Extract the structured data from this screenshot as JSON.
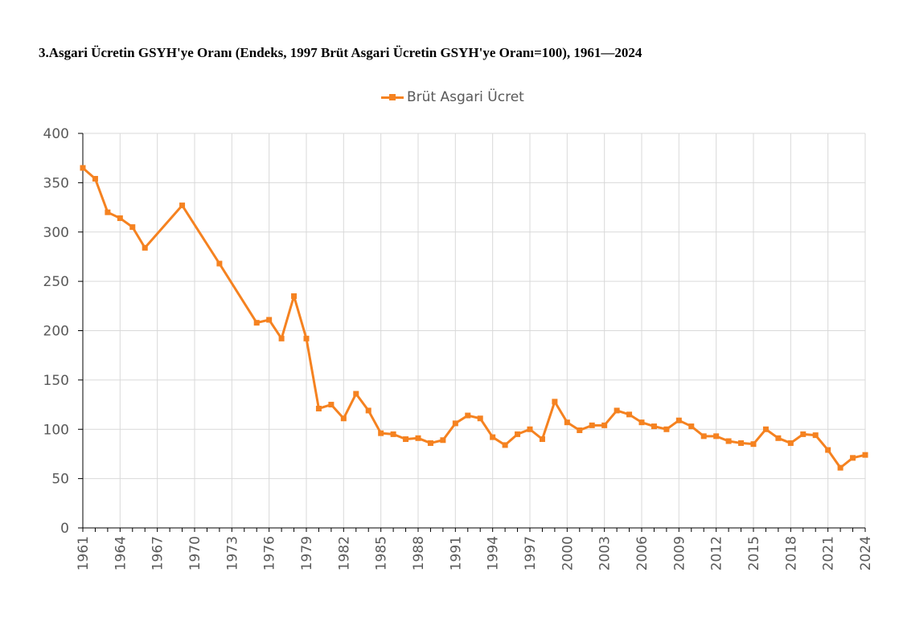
{
  "title": "3.Asgari Ücretin GSYH'ye Oranı (Endeks, 1997 Brüt Asgari Ücretin GSYH'ye Oranı=100), 1961—2024",
  "colors": {
    "series": "#f58220",
    "grid": "#d9d9d9",
    "axis": "#000000",
    "text": "#595959"
  },
  "chart_data": {
    "type": "line",
    "title": "3.Asgari Ücretin GSYH'ye Oranı (Endeks, 1997 Brüt Asgari Ücretin GSYH'ye Oranı=100), 1961—2024",
    "xlabel": "",
    "ylabel": "",
    "xlim": [
      1961,
      2024
    ],
    "ylim": [
      0,
      400
    ],
    "yticks": [
      0,
      50,
      100,
      150,
      200,
      250,
      300,
      350,
      400
    ],
    "xticks": [
      1961,
      1964,
      1967,
      1970,
      1973,
      1976,
      1979,
      1982,
      1985,
      1988,
      1991,
      1994,
      1997,
      2000,
      2003,
      2006,
      2009,
      2012,
      2015,
      2018,
      2021,
      2024
    ],
    "grid": true,
    "legend_position": "top-center",
    "series": [
      {
        "name": "Brüt Asgari Ücret",
        "marker": "square",
        "points": [
          [
            1961,
            365
          ],
          [
            1962,
            354
          ],
          [
            1963,
            320
          ],
          [
            1964,
            314
          ],
          [
            1965,
            305
          ],
          [
            1966,
            284
          ],
          [
            1969,
            327
          ],
          [
            1972,
            268
          ],
          [
            1975,
            208
          ],
          [
            1976,
            211
          ],
          [
            1977,
            192
          ],
          [
            1978,
            235
          ],
          [
            1979,
            192
          ],
          [
            1980,
            121
          ],
          [
            1981,
            125
          ],
          [
            1982,
            111
          ],
          [
            1983,
            136
          ],
          [
            1984,
            119
          ],
          [
            1985,
            96
          ],
          [
            1986,
            95
          ],
          [
            1987,
            90
          ],
          [
            1988,
            91
          ],
          [
            1989,
            86
          ],
          [
            1990,
            89
          ],
          [
            1991,
            106
          ],
          [
            1992,
            114
          ],
          [
            1993,
            111
          ],
          [
            1994,
            92
          ],
          [
            1995,
            84
          ],
          [
            1996,
            95
          ],
          [
            1997,
            100
          ],
          [
            1998,
            90
          ],
          [
            1999,
            128
          ],
          [
            2000,
            107
          ],
          [
            2001,
            99
          ],
          [
            2002,
            104
          ],
          [
            2003,
            104
          ],
          [
            2004,
            119
          ],
          [
            2005,
            115
          ],
          [
            2006,
            107
          ],
          [
            2007,
            103
          ],
          [
            2008,
            100
          ],
          [
            2009,
            109
          ],
          [
            2010,
            103
          ],
          [
            2011,
            93
          ],
          [
            2012,
            93
          ],
          [
            2013,
            88
          ],
          [
            2014,
            86
          ],
          [
            2015,
            85
          ],
          [
            2016,
            100
          ],
          [
            2017,
            91
          ],
          [
            2018,
            86
          ],
          [
            2019,
            95
          ],
          [
            2020,
            94
          ],
          [
            2021,
            79
          ],
          [
            2022,
            61
          ],
          [
            2023,
            71
          ],
          [
            2024,
            74
          ]
        ]
      }
    ]
  }
}
